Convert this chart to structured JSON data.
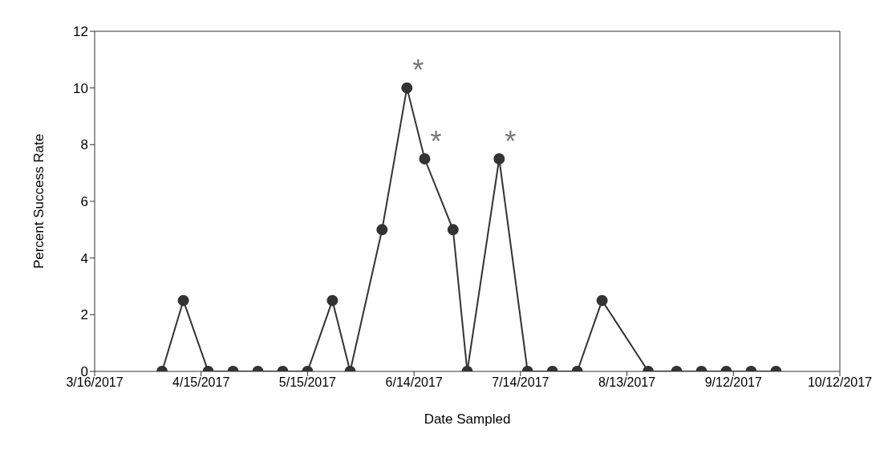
{
  "chart_data": {
    "type": "line",
    "xlabel": "Date Sampled",
    "ylabel": "Percent Success Rate",
    "x": [
      "2017-04-04",
      "2017-04-10",
      "2017-04-17",
      "2017-04-24",
      "2017-05-01",
      "2017-05-08",
      "2017-05-15",
      "2017-05-22",
      "2017-05-27",
      "2017-06-05",
      "2017-06-12",
      "2017-06-17",
      "2017-06-25",
      "2017-06-29",
      "2017-07-08",
      "2017-07-16",
      "2017-07-23",
      "2017-07-30",
      "2017-08-06",
      "2017-08-19",
      "2017-08-27",
      "2017-09-03",
      "2017-09-10",
      "2017-09-17",
      "2017-09-24"
    ],
    "series": [
      {
        "color": "#333333",
        "values": [
          0,
          2.5,
          0,
          0,
          0,
          0,
          0,
          2.5,
          0,
          5,
          10,
          7.5,
          5,
          0,
          7.5,
          0,
          0,
          0,
          2.5,
          0,
          0,
          0,
          0,
          0,
          0
        ]
      }
    ],
    "xlim": [
      "2017-03-16",
      "2017-10-12"
    ],
    "xticks": [
      {
        "value": "2017-03-16",
        "label": "3/16/2017"
      },
      {
        "value": "2017-04-15",
        "label": "4/15/2017"
      },
      {
        "value": "2017-05-15",
        "label": "5/15/2017"
      },
      {
        "value": "2017-06-14",
        "label": "6/14/2017"
      },
      {
        "value": "2017-07-14",
        "label": "7/14/2017"
      },
      {
        "value": "2017-08-13",
        "label": "8/13/2017"
      },
      {
        "value": "2017-09-12",
        "label": "9/12/2017"
      },
      {
        "value": "2017-10-12",
        "label": "10/12/2017"
      }
    ],
    "ylim": [
      0,
      12
    ],
    "yticks": [
      0,
      2,
      4,
      6,
      8,
      10,
      12
    ],
    "annotations": [
      {
        "text": "*",
        "x": "2017-06-12",
        "y": 10
      },
      {
        "text": "*",
        "x": "2017-06-17",
        "y": 7.5
      },
      {
        "text": "*",
        "x": "2017-07-08",
        "y": 7.5
      }
    ],
    "grid": false,
    "legend": false,
    "marker": "circle",
    "line_style": "solid"
  }
}
